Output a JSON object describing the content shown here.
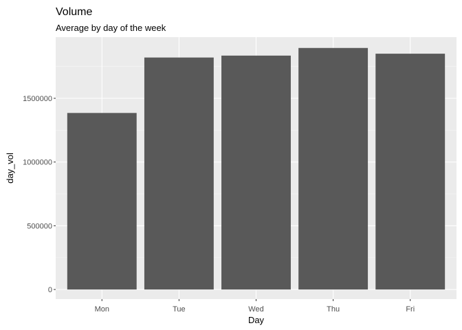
{
  "chart_data": {
    "type": "bar",
    "title": "Volume",
    "subtitle": "Average by day of the week",
    "xlabel": "Day",
    "ylabel": "day_vol",
    "categories": [
      "Mon",
      "Tue",
      "Wed",
      "Thu",
      "Fri"
    ],
    "values": [
      1385000,
      1820000,
      1835000,
      1895000,
      1850000
    ],
    "ylim": [
      -75000,
      1980000
    ],
    "yticks": [
      0,
      500000,
      1000000,
      1500000
    ],
    "ytick_labels": [
      "0",
      "500000",
      "1000000",
      "1500000"
    ],
    "grid": true,
    "legend": "none",
    "colors": {
      "bar": "#595959",
      "panel": "#ebebeb",
      "grid_major": "#ffffff",
      "grid_minor": "#f5f5f5",
      "tick_text": "#4d4d4d"
    }
  }
}
